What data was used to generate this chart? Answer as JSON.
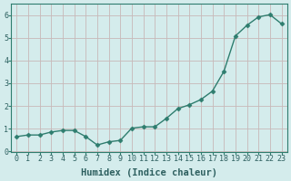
{
  "x": [
    0,
    1,
    2,
    3,
    4,
    5,
    6,
    7,
    8,
    9,
    10,
    11,
    12,
    13,
    14,
    15,
    16,
    17,
    18,
    19,
    20,
    21,
    22,
    23
  ],
  "y": [
    0.65,
    0.72,
    0.72,
    0.85,
    0.92,
    0.92,
    0.65,
    0.28,
    0.42,
    0.48,
    1.02,
    1.08,
    1.08,
    1.45,
    1.88,
    2.05,
    2.28,
    2.65,
    3.52,
    5.08,
    5.55,
    5.92,
    6.02,
    5.62
  ],
  "line_color": "#2e7d6e",
  "marker": "D",
  "marker_size": 2.5,
  "line_width": 1.0,
  "xlabel": "Humidex (Indice chaleur)",
  "xlabel_fontsize": 7.5,
  "bg_color": "#d4ecec",
  "grid_color": "#c8b8b8",
  "axis_color": "#2e7d6e",
  "xlim": [
    -0.5,
    23.5
  ],
  "ylim": [
    -0.05,
    6.5
  ],
  "yticks": [
    0,
    1,
    2,
    3,
    4,
    5,
    6
  ],
  "xticks": [
    0,
    1,
    2,
    3,
    4,
    5,
    6,
    7,
    8,
    9,
    10,
    11,
    12,
    13,
    14,
    15,
    16,
    17,
    18,
    19,
    20,
    21,
    22,
    23
  ],
  "tick_fontsize": 6.0,
  "text_color": "#2e6060"
}
